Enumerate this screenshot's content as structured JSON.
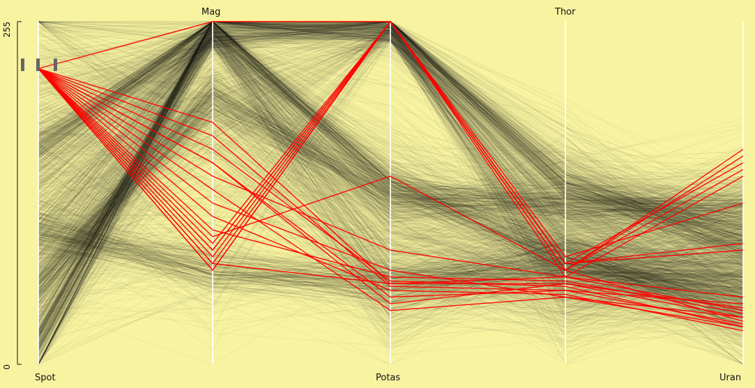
{
  "chart_data": {
    "type": "parallel_coordinates",
    "title": "",
    "axes": [
      {
        "name": "Spot",
        "label_position": "bottom"
      },
      {
        "name": "Mag",
        "label_position": "top"
      },
      {
        "name": "Potas",
        "label_position": "bottom"
      },
      {
        "name": "Thor",
        "label_position": "top"
      },
      {
        "name": "Uran",
        "label_position": "bottom"
      }
    ],
    "ylim": [
      0,
      255
    ],
    "ytick_labels": [
      "0",
      "255"
    ],
    "background_color": "#f7f3a0",
    "context_color": "#2a2a24",
    "highlight_color": "#ff0000",
    "background_bundles": [
      {
        "name": "",
        "values": [
          160,
          255,
          255,
          135,
          90
        ]
      },
      {
        "name": "",
        "values": [
          100,
          70,
          60,
          75,
          60
        ]
      },
      {
        "name": "",
        "values": [
          60,
          200,
          125,
          120,
          115
        ]
      },
      {
        "name": "",
        "values": [
          20,
          255,
          135,
          80,
          40
        ]
      },
      {
        "name": "",
        "values": [
          220,
          180,
          60,
          80,
          100
        ]
      },
      {
        "name": "",
        "values": [
          130,
          150,
          80,
          55,
          70
        ]
      }
    ],
    "highlighted": [
      {
        "values": [
          220,
          255,
          255,
          70,
          160
        ]
      },
      {
        "values": [
          220,
          75,
          255,
          70,
          155
        ]
      },
      {
        "values": [
          220,
          80,
          255,
          75,
          150
        ]
      },
      {
        "values": [
          220,
          90,
          255,
          70,
          145
        ]
      },
      {
        "values": [
          220,
          70,
          255,
          65,
          140
        ]
      },
      {
        "values": [
          220,
          85,
          255,
          80,
          120
        ]
      },
      {
        "values": [
          220,
          85,
          255,
          75,
          90
        ]
      },
      {
        "values": [
          220,
          70,
          255,
          75,
          85
        ]
      },
      {
        "values": [
          220,
          75,
          60,
          65,
          40
        ]
      },
      {
        "values": [
          220,
          180,
          60,
          60,
          35
        ]
      },
      {
        "values": [
          220,
          170,
          58,
          55,
          30
        ]
      },
      {
        "values": [
          220,
          160,
          62,
          58,
          28
        ]
      },
      {
        "values": [
          220,
          110,
          55,
          52,
          25
        ]
      },
      {
        "values": [
          220,
          120,
          70,
          50,
          35
        ]
      },
      {
        "values": [
          220,
          150,
          45,
          60,
          42
        ]
      },
      {
        "values": [
          220,
          150,
          50,
          55,
          45
        ]
      },
      {
        "values": [
          220,
          100,
          65,
          62,
          38
        ]
      },
      {
        "values": [
          220,
          95,
          140,
          70,
          32
        ]
      },
      {
        "values": [
          220,
          140,
          85,
          65,
          50
        ]
      },
      {
        "values": [
          220,
          130,
          40,
          50,
          28
        ]
      }
    ]
  }
}
